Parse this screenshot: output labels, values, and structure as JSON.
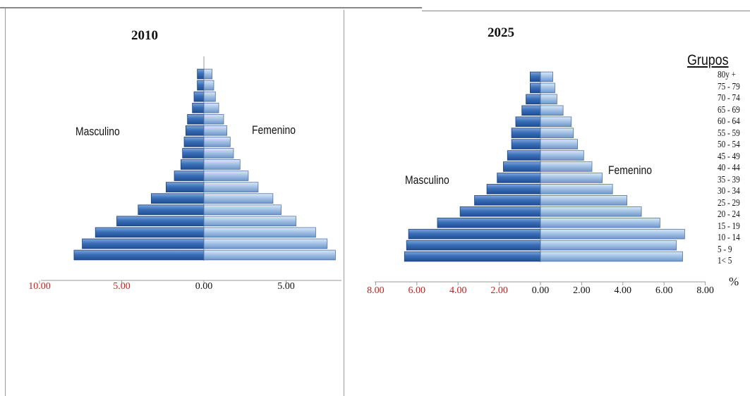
{
  "chart_data": [
    {
      "type": "bar",
      "title": "2010",
      "left_label": "Masculino",
      "right_label": "Femenino",
      "categories": [
        "1< 5",
        "5 - 9",
        "10 - 14",
        "15 - 19",
        "20 - 24",
        "25 - 29",
        "30 - 34",
        "35 - 39",
        "40 - 44",
        "45 - 49",
        "50 - 54",
        "55 - 59",
        "60 - 64",
        "65 - 69",
        "70 - 74",
        "75 - 79",
        "80y +"
      ],
      "series": [
        {
          "name": "Masculino",
          "values": [
            7.9,
            7.4,
            6.6,
            5.3,
            4.0,
            3.2,
            2.3,
            1.8,
            1.4,
            1.3,
            1.2,
            1.1,
            1.0,
            0.7,
            0.6,
            0.4,
            0.4
          ]
        },
        {
          "name": "Femenino",
          "values": [
            8.0,
            7.5,
            6.8,
            5.6,
            4.7,
            4.2,
            3.3,
            2.7,
            2.2,
            1.8,
            1.6,
            1.4,
            1.2,
            0.9,
            0.7,
            0.6,
            0.5
          ]
        }
      ],
      "x_ticks": [
        "10.00",
        "5.00",
        "0.00",
        "5.00"
      ],
      "x_tick_values": [
        -10,
        -5,
        0,
        5
      ],
      "xlim": [
        -10,
        8
      ]
    },
    {
      "type": "bar",
      "title": "2025",
      "left_label": "Masculino",
      "right_label": "Femenino",
      "categories": [
        "1< 5",
        "5 - 9",
        "10 - 14",
        "15 - 19",
        "20 - 24",
        "25 - 29",
        "30 - 34",
        "35 - 39",
        "40 - 44",
        "45 - 49",
        "50 - 54",
        "55 - 59",
        "60 - 64",
        "65 - 69",
        "70 - 74",
        "75 - 79",
        "80y +"
      ],
      "series": [
        {
          "name": "Masculino",
          "values": [
            6.6,
            6.5,
            6.4,
            5.0,
            3.9,
            3.2,
            2.6,
            2.1,
            1.8,
            1.6,
            1.4,
            1.4,
            1.2,
            0.9,
            0.7,
            0.5,
            0.5
          ]
        },
        {
          "name": "Femenino",
          "values": [
            6.9,
            6.6,
            7.0,
            5.8,
            4.9,
            4.2,
            3.5,
            3.0,
            2.5,
            2.1,
            1.8,
            1.6,
            1.5,
            1.1,
            0.8,
            0.7,
            0.6
          ]
        }
      ],
      "x_ticks": [
        "8.00",
        "6.00",
        "4.00",
        "2.00",
        "0.00",
        "2.00",
        "4.00",
        "6.00",
        "8.00"
      ],
      "x_tick_values": [
        -8,
        -6,
        -4,
        -2,
        0,
        2,
        4,
        6,
        8
      ],
      "xlim": [
        -8,
        8
      ]
    }
  ],
  "legend": {
    "header": "Grupos",
    "items": [
      "80y +",
      "75 - 79",
      "70 - 74",
      "65 - 69",
      "60 - 64",
      "55 - 59",
      "50 - 54",
      "45 - 49",
      "40 - 44",
      "35 - 39",
      "30 - 34",
      "25 - 29",
      "20 - 24",
      "15 - 19",
      "10 - 14",
      "5 - 9",
      "1< 5"
    ],
    "unit": "%"
  },
  "colors": {
    "male": "#3a6fb8",
    "male_dark": "#1f4f95",
    "female": "#a5c3e6",
    "female_dark": "#6f97c9",
    "negative_tick": "#d11a1a",
    "axis": "#9a9a9a"
  }
}
